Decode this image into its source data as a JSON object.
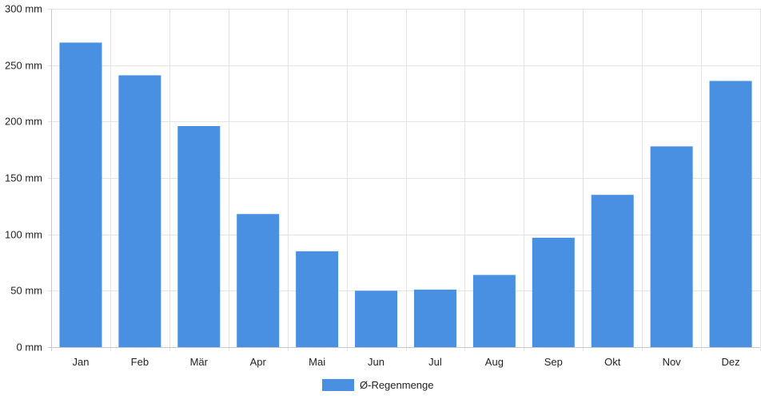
{
  "chart_data": {
    "type": "bar",
    "categories": [
      "Jan",
      "Feb",
      "Mär",
      "Apr",
      "Mai",
      "Jun",
      "Jul",
      "Aug",
      "Sep",
      "Okt",
      "Nov",
      "Dez"
    ],
    "series": [
      {
        "name": "Ø-Regenmenge",
        "values": [
          270,
          241,
          196,
          118,
          85,
          50,
          51,
          64,
          97,
          135,
          178,
          236
        ],
        "color": "#4a90e2"
      }
    ],
    "ylim": [
      0,
      300
    ],
    "yticks": [
      0,
      50,
      100,
      150,
      200,
      250,
      300
    ],
    "y_tick_suffix": " mm",
    "grid": true,
    "legend_position": "bottom"
  }
}
